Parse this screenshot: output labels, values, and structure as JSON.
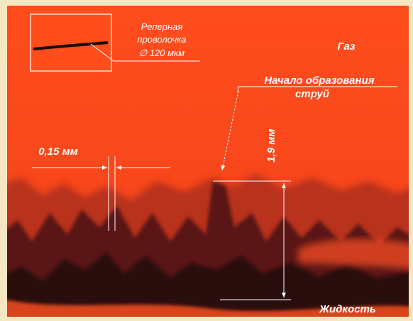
{
  "reference_wire": {
    "lines": [
      "Реперная",
      "проволочка",
      "∅ 120 мкм"
    ]
  },
  "gas_label": "Газ",
  "jet_onset": {
    "lines": [
      "Начало образования",
      "струй"
    ]
  },
  "wire_gap_label": "0,15 мм",
  "jet_height_label": "1,9 мм",
  "liquid_label": "Жидкость"
}
